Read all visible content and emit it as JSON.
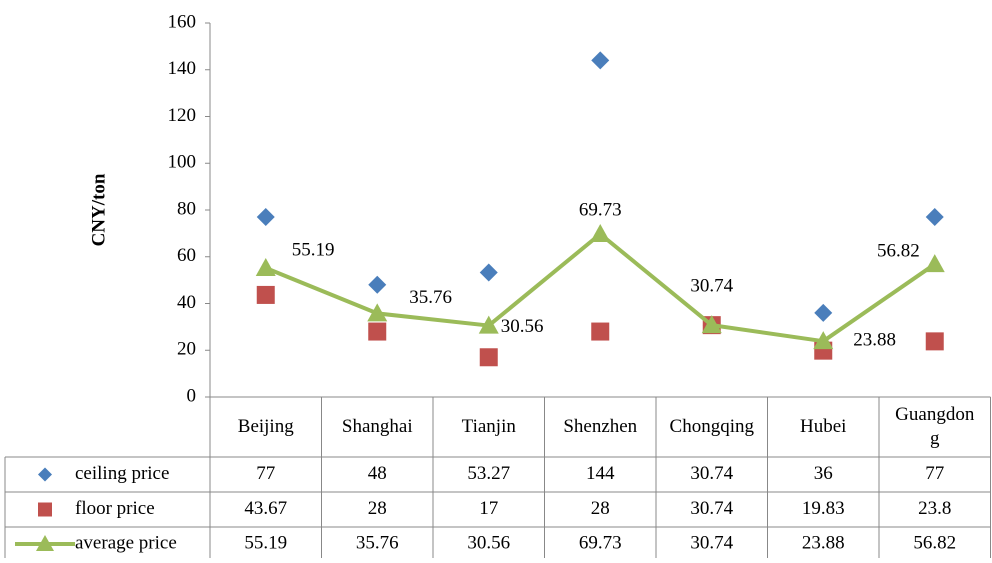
{
  "chart_data": {
    "type": "line",
    "y_label": "CNY/ton",
    "categories": [
      "Beijing",
      "Shanghai",
      "Tianjin",
      "Shenzhen",
      "Chongqing",
      "Hubei",
      "Guangdong"
    ],
    "series": [
      {
        "name": "ceiling price",
        "color": "#4a7ebb",
        "marker": "diamond",
        "line": false,
        "data_labels": false,
        "values": [
          77,
          48,
          53.27,
          144,
          30.74,
          36,
          77
        ]
      },
      {
        "name": "floor price",
        "color": "#c0504d",
        "marker": "square",
        "line": false,
        "data_labels": false,
        "values": [
          43.67,
          28,
          17,
          28,
          30.74,
          19.83,
          23.8
        ]
      },
      {
        "name": "average price",
        "color": "#9bbb59",
        "marker": "triangle",
        "line": true,
        "data_labels": true,
        "values": [
          55.19,
          35.76,
          30.56,
          69.73,
          30.74,
          23.88,
          56.82
        ]
      }
    ],
    "ylim": [
      0,
      160
    ],
    "yticks": [
      0,
      20,
      40,
      60,
      80,
      100,
      120,
      140,
      160
    ],
    "grid": false,
    "data_table": true
  }
}
